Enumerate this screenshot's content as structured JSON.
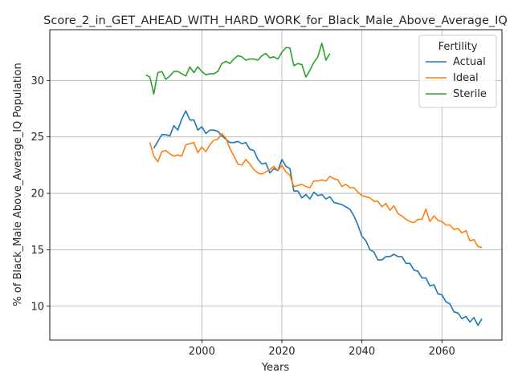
{
  "chart_data": {
    "type": "line",
    "title": "Score_2_in_GET_AHEAD_WITH_HARD_WORK_for_Black_Male_Above_Average_IQ",
    "xlabel": "Years",
    "ylabel": "% of Black_Male Above_Average_IQ Population",
    "xlim": [
      1962,
      2075
    ],
    "ylim": [
      7.0,
      34.5
    ],
    "xticks": [
      2000,
      2020,
      2040,
      2060
    ],
    "yticks": [
      10,
      15,
      20,
      25,
      30
    ],
    "grid": true,
    "legend": {
      "title": "Fertility",
      "placement": "top-right"
    },
    "series": [
      {
        "name": "Actual",
        "color": "#1f77b4",
        "x": [
          1988,
          1989,
          1990,
          1991,
          1992,
          1993,
          1994,
          1995,
          1996,
          1997,
          1998,
          1999,
          2000,
          2001,
          2002,
          2003,
          2004,
          2005,
          2006,
          2007,
          2008,
          2009,
          2010,
          2011,
          2012,
          2013,
          2014,
          2015,
          2016,
          2017,
          2018,
          2019,
          2020,
          2021,
          2022,
          2023,
          2024,
          2025,
          2026,
          2027,
          2028,
          2029,
          2030,
          2031,
          2032,
          2033,
          2034,
          2035,
          2036,
          2037,
          2038,
          2039,
          2040,
          2041,
          2042,
          2043,
          2044,
          2045,
          2046,
          2047,
          2048,
          2049,
          2050,
          2051,
          2052,
          2053,
          2054,
          2055,
          2056,
          2057,
          2058,
          2059,
          2060,
          2061,
          2062,
          2063,
          2064,
          2065,
          2066,
          2067,
          2068,
          2069,
          2070
        ],
        "values": [
          24.0,
          24.6,
          25.2,
          25.2,
          25.1,
          26.0,
          25.6,
          26.6,
          27.3,
          26.5,
          26.5,
          25.6,
          25.9,
          25.3,
          25.6,
          25.6,
          25.5,
          25.1,
          24.8,
          24.5,
          24.5,
          24.6,
          24.4,
          24.5,
          23.9,
          23.8,
          23.0,
          22.6,
          22.7,
          21.8,
          22.2,
          22.0,
          23.0,
          22.4,
          22.2,
          20.2,
          20.2,
          19.6,
          19.9,
          19.5,
          20.1,
          19.8,
          19.9,
          19.5,
          19.7,
          19.2,
          19.1,
          19.0,
          18.8,
          18.6,
          18.0,
          17.2,
          16.2,
          15.8,
          15.0,
          14.8,
          14.1,
          14.1,
          14.4,
          14.4,
          14.6,
          14.4,
          14.4,
          13.8,
          13.8,
          13.2,
          13.1,
          12.5,
          12.5,
          11.8,
          11.9,
          11.1,
          11.0,
          10.4,
          10.2,
          9.5,
          9.4,
          8.9,
          9.1,
          8.6,
          9.0,
          8.3,
          8.9
        ]
      },
      {
        "name": "Ideal",
        "color": "#ff7f0e",
        "x": [
          1987,
          1988,
          1989,
          1990,
          1991,
          1992,
          1993,
          1994,
          1995,
          1996,
          1997,
          1998,
          1999,
          2000,
          2001,
          2002,
          2003,
          2004,
          2005,
          2006,
          2007,
          2008,
          2009,
          2010,
          2011,
          2012,
          2013,
          2014,
          2015,
          2016,
          2017,
          2018,
          2019,
          2020,
          2021,
          2022,
          2023,
          2024,
          2025,
          2026,
          2027,
          2028,
          2029,
          2030,
          2031,
          2032,
          2033,
          2034,
          2035,
          2036,
          2037,
          2038,
          2039,
          2040,
          2041,
          2042,
          2043,
          2044,
          2045,
          2046,
          2047,
          2048,
          2049,
          2050,
          2051,
          2052,
          2053,
          2054,
          2055,
          2056,
          2057,
          2058,
          2059,
          2060,
          2061,
          2062,
          2063,
          2064,
          2065,
          2066,
          2067,
          2068,
          2069,
          2070
        ],
        "values": [
          24.5,
          23.3,
          22.8,
          23.7,
          23.8,
          23.5,
          23.3,
          23.4,
          23.3,
          24.3,
          24.4,
          24.5,
          23.6,
          24.1,
          23.7,
          24.3,
          24.7,
          24.8,
          25.3,
          24.9,
          24.0,
          23.3,
          22.6,
          22.5,
          23.0,
          22.6,
          22.1,
          21.8,
          21.7,
          21.9,
          22.1,
          22.4,
          22.0,
          22.5,
          21.9,
          21.6,
          20.6,
          20.7,
          20.8,
          20.6,
          20.5,
          21.1,
          21.1,
          21.2,
          21.1,
          21.5,
          21.3,
          21.2,
          20.6,
          20.8,
          20.5,
          20.5,
          20.1,
          19.8,
          19.7,
          19.6,
          19.3,
          19.3,
          18.8,
          19.1,
          18.5,
          18.9,
          18.2,
          18.0,
          17.7,
          17.5,
          17.4,
          17.7,
          17.7,
          18.6,
          17.5,
          18.0,
          17.6,
          17.5,
          17.2,
          17.2,
          16.8,
          16.9,
          16.5,
          16.7,
          15.8,
          15.9,
          15.3,
          15.2
        ]
      },
      {
        "name": "Sterile",
        "color": "#2ca02c",
        "x": [
          1986,
          1987,
          1988,
          1989,
          1990,
          1991,
          1992,
          1993,
          1994,
          1995,
          1996,
          1997,
          1998,
          1999,
          2000,
          2001,
          2002,
          2003,
          2004,
          2005,
          2006,
          2007,
          2008,
          2009,
          2010,
          2011,
          2012,
          2013,
          2014,
          2015,
          2016,
          2017,
          2018,
          2019,
          2020,
          2021,
          2022,
          2023,
          2024,
          2025,
          2026,
          2027,
          2028,
          2029,
          2030,
          2031,
          2032
        ],
        "values": [
          30.5,
          30.3,
          28.8,
          30.7,
          30.8,
          30.1,
          30.4,
          30.8,
          30.8,
          30.6,
          30.4,
          31.2,
          30.7,
          31.2,
          30.8,
          30.5,
          30.6,
          30.6,
          30.8,
          31.5,
          31.7,
          31.5,
          31.9,
          32.2,
          32.1,
          31.8,
          31.9,
          31.9,
          31.8,
          32.2,
          32.4,
          32.0,
          32.1,
          31.9,
          32.5,
          32.9,
          32.9,
          31.3,
          31.5,
          31.4,
          30.3,
          30.9,
          31.6,
          32.1,
          33.3,
          31.8,
          32.4
        ]
      }
    ]
  }
}
